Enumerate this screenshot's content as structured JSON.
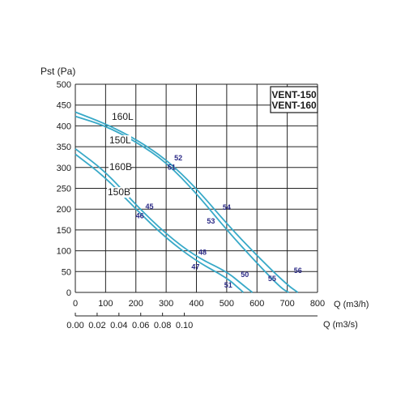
{
  "chart_data": {
    "type": "line",
    "ylabel": "Pst (Pa)",
    "xlabel": "Q (m3/h)",
    "x2label": "Q (m3/s)",
    "legend_lines": [
      "VENT-150",
      "VENT-160"
    ],
    "ylim": [
      0,
      500
    ],
    "xlim": [
      0,
      800
    ],
    "y_ticks": [
      0,
      50,
      100,
      150,
      200,
      250,
      300,
      350,
      400,
      450,
      500
    ],
    "x_ticks": [
      0,
      100,
      200,
      300,
      400,
      500,
      600,
      700,
      800
    ],
    "x2_ticks": [
      "0.00",
      "0.02",
      "0.04",
      "0.06",
      "0.08",
      "0.10"
    ],
    "grid": true,
    "line_color": "#38a9c8",
    "label_color": "#2b2a86",
    "series": [
      {
        "name": "160L",
        "points": [
          [
            0,
            433
          ],
          [
            100,
            405
          ],
          [
            200,
            368
          ],
          [
            300,
            320
          ],
          [
            400,
            250
          ],
          [
            500,
            165
          ],
          [
            600,
            88
          ],
          [
            700,
            18
          ],
          [
            735,
            0
          ]
        ]
      },
      {
        "name": "150L",
        "points": [
          [
            0,
            423
          ],
          [
            100,
            400
          ],
          [
            200,
            362
          ],
          [
            300,
            313
          ],
          [
            400,
            238
          ],
          [
            500,
            150
          ],
          [
            600,
            70
          ],
          [
            680,
            10
          ],
          [
            705,
            0
          ]
        ]
      },
      {
        "name": "160B",
        "points": [
          [
            0,
            345
          ],
          [
            100,
            290
          ],
          [
            200,
            210
          ],
          [
            300,
            140
          ],
          [
            400,
            85
          ],
          [
            500,
            50
          ],
          [
            550,
            20
          ],
          [
            585,
            0
          ]
        ]
      },
      {
        "name": "150B",
        "points": [
          [
            0,
            332
          ],
          [
            100,
            276
          ],
          [
            200,
            200
          ],
          [
            300,
            130
          ],
          [
            400,
            75
          ],
          [
            500,
            35
          ],
          [
            540,
            10
          ],
          [
            555,
            0
          ]
        ]
      }
    ],
    "annotations": [
      {
        "text": "52",
        "x": 340,
        "y": 317
      },
      {
        "text": "51",
        "x": 318,
        "y": 295
      },
      {
        "text": "54",
        "x": 500,
        "y": 198
      },
      {
        "text": "53",
        "x": 448,
        "y": 165
      },
      {
        "text": "56",
        "x": 735,
        "y": 47
      },
      {
        "text": "55",
        "x": 650,
        "y": 27
      },
      {
        "text": "50",
        "x": 560,
        "y": 37
      },
      {
        "text": "51",
        "x": 505,
        "y": 12
      },
      {
        "text": "45",
        "x": 245,
        "y": 200
      },
      {
        "text": "46",
        "x": 213,
        "y": 178
      },
      {
        "text": "48",
        "x": 420,
        "y": 90
      },
      {
        "text": "47",
        "x": 397,
        "y": 55
      }
    ]
  }
}
